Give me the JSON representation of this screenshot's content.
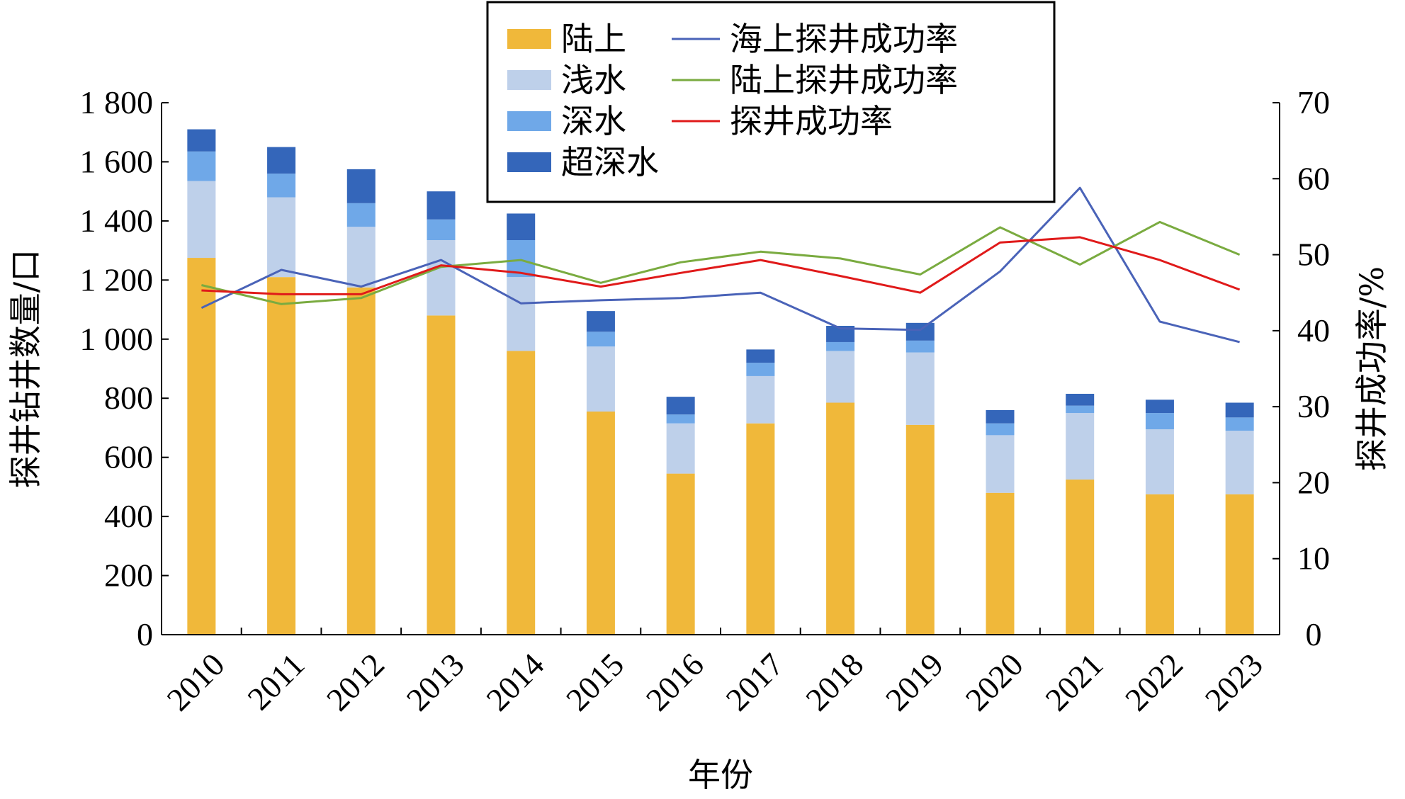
{
  "chart_data": {
    "type": "bar",
    "stacked": true,
    "categories": [
      "2010",
      "2011",
      "2012",
      "2013",
      "2014",
      "2015",
      "2016",
      "2017",
      "2018",
      "2019",
      "2020",
      "2021",
      "2022",
      "2023"
    ],
    "series": [
      {
        "name": "陆上",
        "kind": "bar",
        "axis": "left",
        "color": "#F0B83A",
        "values": [
          1275,
          1210,
          1175,
          1080,
          960,
          755,
          545,
          715,
          785,
          710,
          480,
          525,
          475,
          475
        ]
      },
      {
        "name": "浅水",
        "kind": "bar",
        "axis": "left",
        "color": "#BED0EA",
        "values": [
          260,
          270,
          205,
          255,
          250,
          220,
          170,
          160,
          175,
          245,
          195,
          225,
          220,
          215
        ]
      },
      {
        "name": "深水",
        "kind": "bar",
        "axis": "left",
        "color": "#6FA8E8",
        "values": [
          100,
          80,
          80,
          70,
          125,
          50,
          30,
          45,
          30,
          40,
          40,
          25,
          55,
          45
        ]
      },
      {
        "name": "超深水",
        "kind": "bar",
        "axis": "left",
        "color": "#3466BA",
        "values": [
          75,
          90,
          115,
          95,
          90,
          70,
          60,
          45,
          55,
          60,
          45,
          40,
          45,
          50
        ]
      },
      {
        "name": "海上探井成功率",
        "kind": "line",
        "axis": "right",
        "color": "#4A63B8",
        "values": [
          43.0,
          48.0,
          45.8,
          49.3,
          43.6,
          44.0,
          44.3,
          45.0,
          40.3,
          40.1,
          47.8,
          58.8,
          41.2,
          38.5
        ]
      },
      {
        "name": "陆上探井成功率",
        "kind": "line",
        "axis": "right",
        "color": "#7AAB40",
        "values": [
          46.0,
          43.5,
          44.3,
          48.4,
          49.3,
          46.3,
          49.0,
          50.4,
          49.5,
          47.4,
          53.6,
          48.7,
          54.3,
          50.0
        ]
      },
      {
        "name": "探井成功率",
        "kind": "line",
        "axis": "right",
        "color": "#E01A1A",
        "values": [
          45.3,
          44.8,
          44.8,
          48.6,
          47.6,
          45.8,
          47.6,
          49.3,
          47.2,
          45.0,
          51.6,
          52.3,
          49.3,
          45.4
        ]
      }
    ],
    "xlabel": "年份",
    "ylabel": "探井钻井数量/口",
    "ylabel_right": "探井成功率/%",
    "ylim": [
      0,
      1800
    ],
    "ylim_right": [
      0,
      70
    ],
    "yticks": [
      "0",
      "200",
      "400",
      "600",
      "800",
      "1 000",
      "1 200",
      "1 400",
      "1 600",
      "1 800"
    ],
    "yticks_right": [
      "0",
      "10",
      "20",
      "30",
      "40",
      "50",
      "60",
      "70"
    ],
    "legend_position": "top-center",
    "grid": false
  }
}
